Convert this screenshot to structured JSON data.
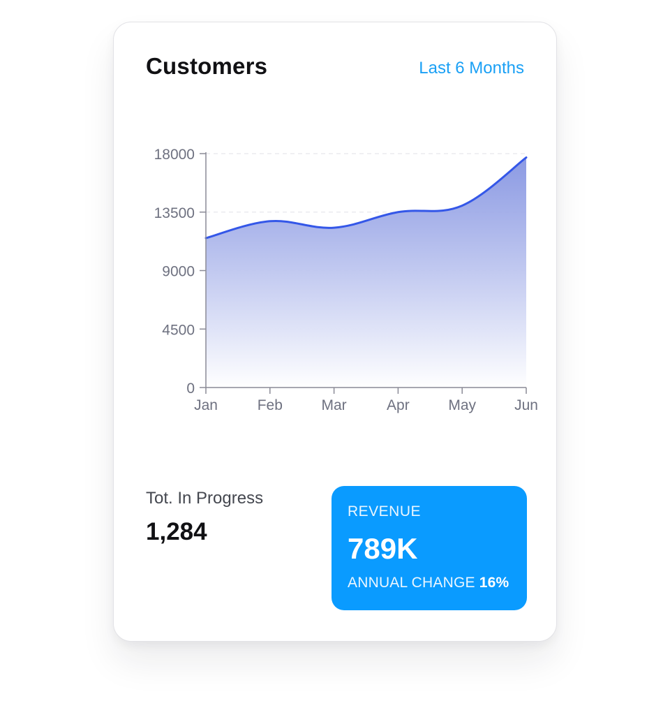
{
  "header": {
    "title": "Customers",
    "period": "Last 6 Months"
  },
  "chart_data": {
    "type": "area",
    "categories": [
      "Jan",
      "Feb",
      "Mar",
      "Apr",
      "May",
      "Jun"
    ],
    "values": [
      11500,
      12800,
      12300,
      13500,
      14000,
      17700
    ],
    "ylim": [
      0,
      18000
    ],
    "yticks": [
      0,
      4500,
      9000,
      13500,
      18000
    ],
    "grid": true,
    "legend": "none",
    "colors": {
      "line": "#3457e8",
      "fill_top": "#7f8fe0",
      "fill_bottom": "#ffffff",
      "axis": "#8a8a96",
      "tick_text": "#6e7180",
      "grid": "#e6e6ec"
    }
  },
  "stats": {
    "in_progress_label": "Tot. In Progress",
    "in_progress_value": "1,284"
  },
  "revenue": {
    "label": "REVENUE",
    "value": "789K",
    "change_label": "ANNUAL CHANGE",
    "change_value": "16%",
    "color": "#0a9bff"
  }
}
